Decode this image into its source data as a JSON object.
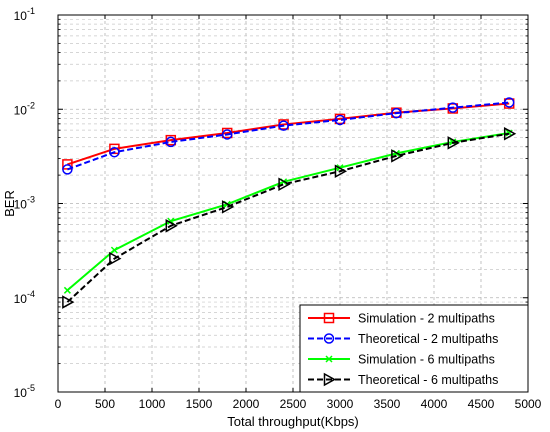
{
  "chart_data": {
    "type": "line",
    "title": "",
    "xlabel": "Total throughput(Kbps)",
    "ylabel": "BER",
    "xlim": [
      0,
      5000
    ],
    "ylim": [
      1e-05,
      0.1
    ],
    "yscale": "log",
    "grid": true,
    "legend_position": "bottom-right",
    "x_ticks": [
      "0",
      "500",
      "1000",
      "1500",
      "2000",
      "2500",
      "3000",
      "3500",
      "4000",
      "4500",
      "5000"
    ],
    "y_ticks": [
      {
        "base": "10",
        "exp": "-5"
      },
      {
        "base": "10",
        "exp": "-4"
      },
      {
        "base": "10",
        "exp": "-3"
      },
      {
        "base": "10",
        "exp": "-2"
      },
      {
        "base": "10",
        "exp": "-1"
      }
    ],
    "x": [
      100,
      600,
      1200,
      1800,
      2400,
      3000,
      3600,
      4200,
      4800
    ],
    "series": [
      {
        "name": "Simulation - 2 multipaths",
        "color": "#ff0000",
        "dash": "solid",
        "marker": "square",
        "values": [
          0.0026,
          0.0038,
          0.0047,
          0.0056,
          0.0069,
          0.0079,
          0.0092,
          0.0102,
          0.0115
        ]
      },
      {
        "name": "Theoretical - 2 multipaths",
        "color": "#0000ff",
        "dash": "dashed",
        "marker": "circle",
        "values": [
          0.0023,
          0.0035,
          0.0045,
          0.0054,
          0.0067,
          0.0077,
          0.0091,
          0.0104,
          0.0118
        ]
      },
      {
        "name": "Simulation - 6 multipaths",
        "color": "#00ff00",
        "dash": "solid",
        "marker": "x",
        "values": [
          0.00012,
          0.00032,
          0.00065,
          0.00098,
          0.0017,
          0.0024,
          0.0034,
          0.0045,
          0.0056
        ]
      },
      {
        "name": "Theoretical - 6 multipaths",
        "color": "#000000",
        "dash": "dashed",
        "marker": "triangle-right",
        "values": [
          9e-05,
          0.00026,
          0.00058,
          0.00092,
          0.0016,
          0.0022,
          0.0032,
          0.0044,
          0.0055
        ]
      }
    ]
  }
}
